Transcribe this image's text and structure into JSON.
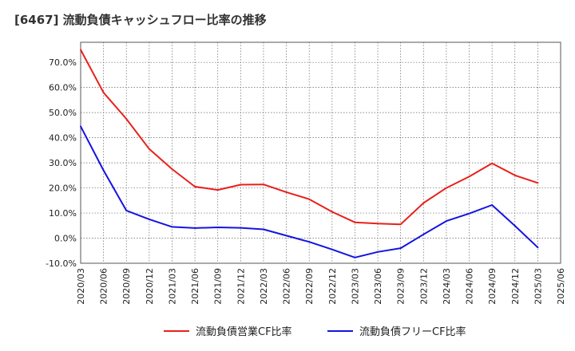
{
  "chart_data": {
    "type": "line",
    "title": "[6467]  流動負債キャッシュフロー比率の推移",
    "xlabel": "",
    "ylabel": "",
    "ylim": [
      -10,
      78
    ],
    "y_ticks": [
      -10,
      0,
      10,
      20,
      30,
      40,
      50,
      60,
      70
    ],
    "y_tick_labels": [
      "-10.0%",
      "0.0%",
      "10.0%",
      "20.0%",
      "30.0%",
      "40.0%",
      "50.0%",
      "60.0%",
      "70.0%"
    ],
    "categories": [
      "2020/03",
      "2020/06",
      "2020/09",
      "2020/12",
      "2021/03",
      "2021/06",
      "2021/09",
      "2021/12",
      "2022/03",
      "2022/06",
      "2022/09",
      "2022/12",
      "2023/03",
      "2023/06",
      "2023/09",
      "2023/12",
      "2024/03",
      "2024/06",
      "2024/09",
      "2024/12",
      "2025/03",
      "2025/06"
    ],
    "grid": true,
    "legend_position": "bottom",
    "series": [
      {
        "name": "流動負債営業CF比率",
        "color": "#e8201a",
        "values": [
          75.0,
          58.0,
          47.5,
          35.5,
          27.5,
          20.5,
          19.2,
          21.3,
          21.4,
          18.3,
          15.5,
          10.5,
          6.3,
          5.8,
          5.5,
          14.0,
          20.0,
          24.5,
          29.8,
          25.0,
          22.0,
          null
        ]
      },
      {
        "name": "流動負債フリーCF比率",
        "color": "#1414e0",
        "values": [
          44.5,
          27.0,
          11.0,
          7.5,
          4.5,
          4.0,
          4.3,
          4.1,
          3.5,
          1.0,
          -1.5,
          -4.5,
          -7.7,
          -5.5,
          -4.0,
          1.5,
          6.8,
          9.8,
          13.2,
          4.9,
          -3.7,
          null
        ]
      }
    ]
  }
}
